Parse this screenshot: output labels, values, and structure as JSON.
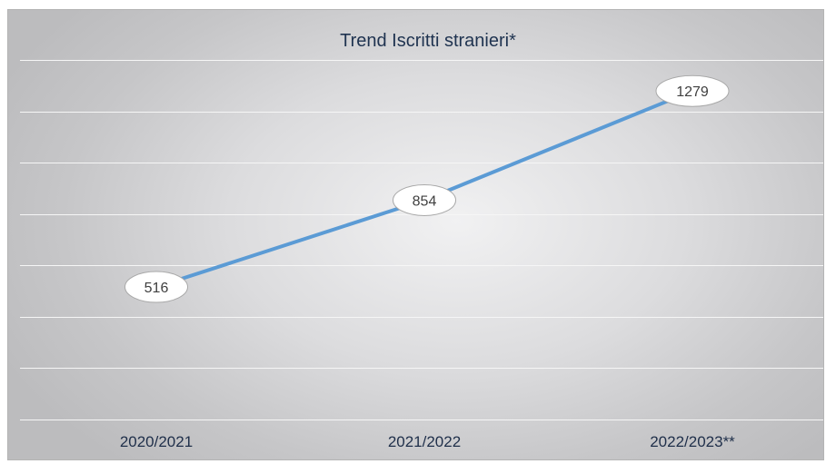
{
  "chart_data": {
    "type": "line",
    "title": "Trend Iscritti stranieri*",
    "xlabel": "",
    "ylabel": "",
    "categories": [
      "2020/2021",
      "2021/2022",
      "2022/2023**"
    ],
    "series": [
      {
        "values": [
          516,
          854,
          1279
        ]
      }
    ],
    "ylim": [
      0,
      1400
    ],
    "grid": true,
    "legend": "none",
    "colors": {
      "line": "#5b9bd5",
      "grid": "#f6f6f6",
      "label_bubble": "#ffffff"
    }
  }
}
